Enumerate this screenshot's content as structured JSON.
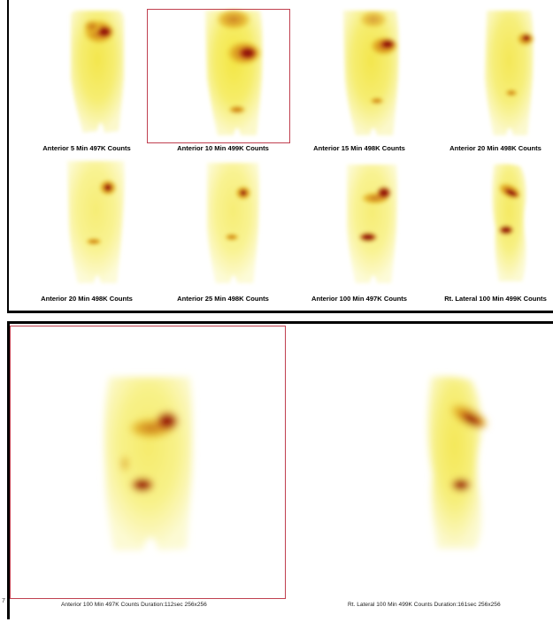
{
  "top_grid": {
    "row1": [
      {
        "caption": "Anterior 5 Min 497K Counts",
        "selected": false,
        "view": "anterior",
        "phase": 0
      },
      {
        "caption": "Anterior 10 Min 499K Counts",
        "selected": true,
        "view": "anterior",
        "phase": 1
      },
      {
        "caption": "Anterior 15 Min 498K Counts",
        "selected": false,
        "view": "anterior",
        "phase": 2
      },
      {
        "caption": "Anterior 20 Min 498K Counts",
        "selected": false,
        "view": "anterior",
        "phase": 3
      }
    ],
    "row2": [
      {
        "caption": "Anterior 20 Min 498K Counts",
        "selected": false,
        "view": "anterior",
        "phase": 3
      },
      {
        "caption": "Anterior 25 Min 498K Counts",
        "selected": false,
        "view": "anterior",
        "phase": 4
      },
      {
        "caption": "Anterior 100 Min 497K Counts",
        "selected": false,
        "view": "anterior",
        "phase": 5
      },
      {
        "caption": "Rt. Lateral 100 Min 499K Counts",
        "selected": false,
        "view": "lateral",
        "phase": 5
      }
    ]
  },
  "enlarged": [
    {
      "caption": "Anterior 100 Min 497K Counts Duration:112sec 256x256",
      "selected": true,
      "view": "anterior"
    },
    {
      "caption": "Rt. Lateral 100 Min 499K Counts Duration:161sec 256x256",
      "selected": false,
      "view": "lateral"
    }
  ],
  "stray_mark": "7",
  "colors": {
    "selection_border": "#c04050",
    "panel_border": "#000000",
    "body_glow": "#f6ee40",
    "hot": "#8a1010"
  }
}
